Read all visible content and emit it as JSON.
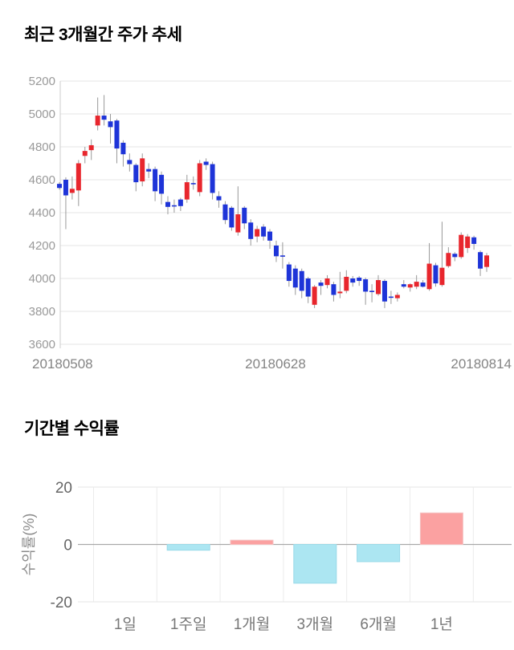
{
  "price_chart": {
    "title": "최근 3개월간 주가 추세"
  },
  "returns_chart": {
    "title": "기간별 수익률"
  },
  "chart_data": [
    {
      "type": "candlestick",
      "title": "최근 3개월간 주가 추세",
      "xlabel": "",
      "ylabel": "",
      "ylim": [
        3600,
        5200
      ],
      "y_ticks": [
        5200,
        5000,
        4800,
        4600,
        4400,
        4200,
        4000,
        3800,
        3600
      ],
      "x_tick_labels": [
        "20180508",
        "20180628",
        "20180814"
      ],
      "grid": true,
      "legend": "none",
      "up_color": "#e8262d",
      "down_color": "#1e34d8",
      "wick_color": "#999999",
      "grid_color": "#e4e4e4",
      "axis_color": "#cccccc",
      "tick_text_color": "#999999",
      "x_text_color": "#848484",
      "candles_ohlc": [
        [
          4575,
          4585,
          4540,
          4550
        ],
        [
          4600,
          4615,
          4300,
          4505
        ],
        [
          4520,
          4620,
          4480,
          4545
        ],
        [
          4535,
          4720,
          4440,
          4700
        ],
        [
          4745,
          4800,
          4700,
          4775
        ],
        [
          4780,
          4845,
          4720,
          4810
        ],
        [
          4930,
          5100,
          4900,
          4990
        ],
        [
          4990,
          5115,
          4930,
          4965
        ],
        [
          4955,
          5000,
          4820,
          4920
        ],
        [
          4960,
          4970,
          4700,
          4790
        ],
        [
          4825,
          4840,
          4680,
          4755
        ],
        [
          4720,
          4760,
          4650,
          4695
        ],
        [
          4690,
          4700,
          4530,
          4585
        ],
        [
          4590,
          4760,
          4560,
          4730
        ],
        [
          4665,
          4700,
          4610,
          4650
        ],
        [
          4665,
          4680,
          4470,
          4530
        ],
        [
          4630,
          4650,
          4450,
          4515
        ],
        [
          4465,
          4500,
          4390,
          4435
        ],
        [
          4445,
          4480,
          4400,
          4440
        ],
        [
          4480,
          4490,
          4410,
          4440
        ],
        [
          4480,
          4630,
          4460,
          4585
        ],
        [
          4580,
          4620,
          4540,
          4575
        ],
        [
          4525,
          4720,
          4500,
          4700
        ],
        [
          4710,
          4730,
          4660,
          4690
        ],
        [
          4695,
          4710,
          4480,
          4520
        ],
        [
          4500,
          4530,
          4430,
          4475
        ],
        [
          4450,
          4470,
          4330,
          4355
        ],
        [
          4430,
          4440,
          4290,
          4310
        ],
        [
          4280,
          4560,
          4260,
          4390
        ],
        [
          4430,
          4440,
          4300,
          4335
        ],
        [
          4340,
          4360,
          4200,
          4240
        ],
        [
          4255,
          4320,
          4220,
          4300
        ],
        [
          4315,
          4330,
          4230,
          4255
        ],
        [
          4285,
          4300,
          4180,
          4230
        ],
        [
          4200,
          4230,
          4100,
          4135
        ],
        [
          4140,
          4220,
          4060,
          4135
        ],
        [
          4085,
          4100,
          3950,
          3985
        ],
        [
          4060,
          4080,
          3900,
          3945
        ],
        [
          4045,
          4060,
          3880,
          3925
        ],
        [
          4000,
          4010,
          3850,
          3890
        ],
        [
          3840,
          3960,
          3820,
          3950
        ],
        [
          3975,
          3990,
          3900,
          3955
        ],
        [
          3960,
          4020,
          3940,
          4000
        ],
        [
          3965,
          3980,
          3860,
          3900
        ],
        [
          3910,
          4040,
          3880,
          3920
        ],
        [
          3925,
          4050,
          3910,
          4010
        ],
        [
          4000,
          4015,
          3950,
          3975
        ],
        [
          4005,
          4015,
          3955,
          3985
        ],
        [
          3995,
          4005,
          3840,
          3920
        ],
        [
          3925,
          3965,
          3855,
          3920
        ],
        [
          3905,
          4020,
          3895,
          3990
        ],
        [
          3985,
          3995,
          3820,
          3860
        ],
        [
          3890,
          3925,
          3845,
          3885
        ],
        [
          3880,
          3915,
          3860,
          3900
        ],
        [
          3965,
          3990,
          3940,
          3950
        ],
        [
          3945,
          3970,
          3920,
          3965
        ],
        [
          3950,
          4020,
          3935,
          3980
        ],
        [
          3975,
          3990,
          3945,
          3950
        ],
        [
          3935,
          4215,
          3925,
          4090
        ],
        [
          4080,
          4095,
          3950,
          3970
        ],
        [
          3960,
          4345,
          3950,
          4065
        ],
        [
          4075,
          4190,
          4065,
          4155
        ],
        [
          4150,
          4160,
          4105,
          4130
        ],
        [
          4130,
          4280,
          4120,
          4265
        ],
        [
          4185,
          4270,
          4155,
          4255
        ],
        [
          4250,
          4260,
          4175,
          4210
        ],
        [
          4160,
          4170,
          4015,
          4060
        ],
        [
          4070,
          4155,
          4040,
          4140
        ]
      ]
    },
    {
      "type": "bar",
      "title": "기간별 수익률",
      "xlabel": "",
      "ylabel": "수익률(%)",
      "categories": [
        "1일",
        "1주일",
        "1개월",
        "3개월",
        "6개월",
        "1년"
      ],
      "values": [
        0,
        -2,
        1.5,
        -13.5,
        -6,
        11
      ],
      "y_ticks": [
        20,
        0,
        -20
      ],
      "y_tick_labels": [
        "20",
        "0",
        "-20"
      ],
      "ylim": [
        -20,
        20
      ],
      "grid": true,
      "legend": "none",
      "positive_color": "#fba1a1",
      "positive_border": "#f4c2c2",
      "negative_color": "#ace6f2",
      "negative_border": "#99d9e8",
      "zero_line_color": "#aaaaaa",
      "grid_color": "#e4e4e4",
      "separator_color": "#ebebeb",
      "tick_text_color": "#666666",
      "category_text_color": "#777777",
      "ylabel_color": "#8c8c8c"
    }
  ]
}
